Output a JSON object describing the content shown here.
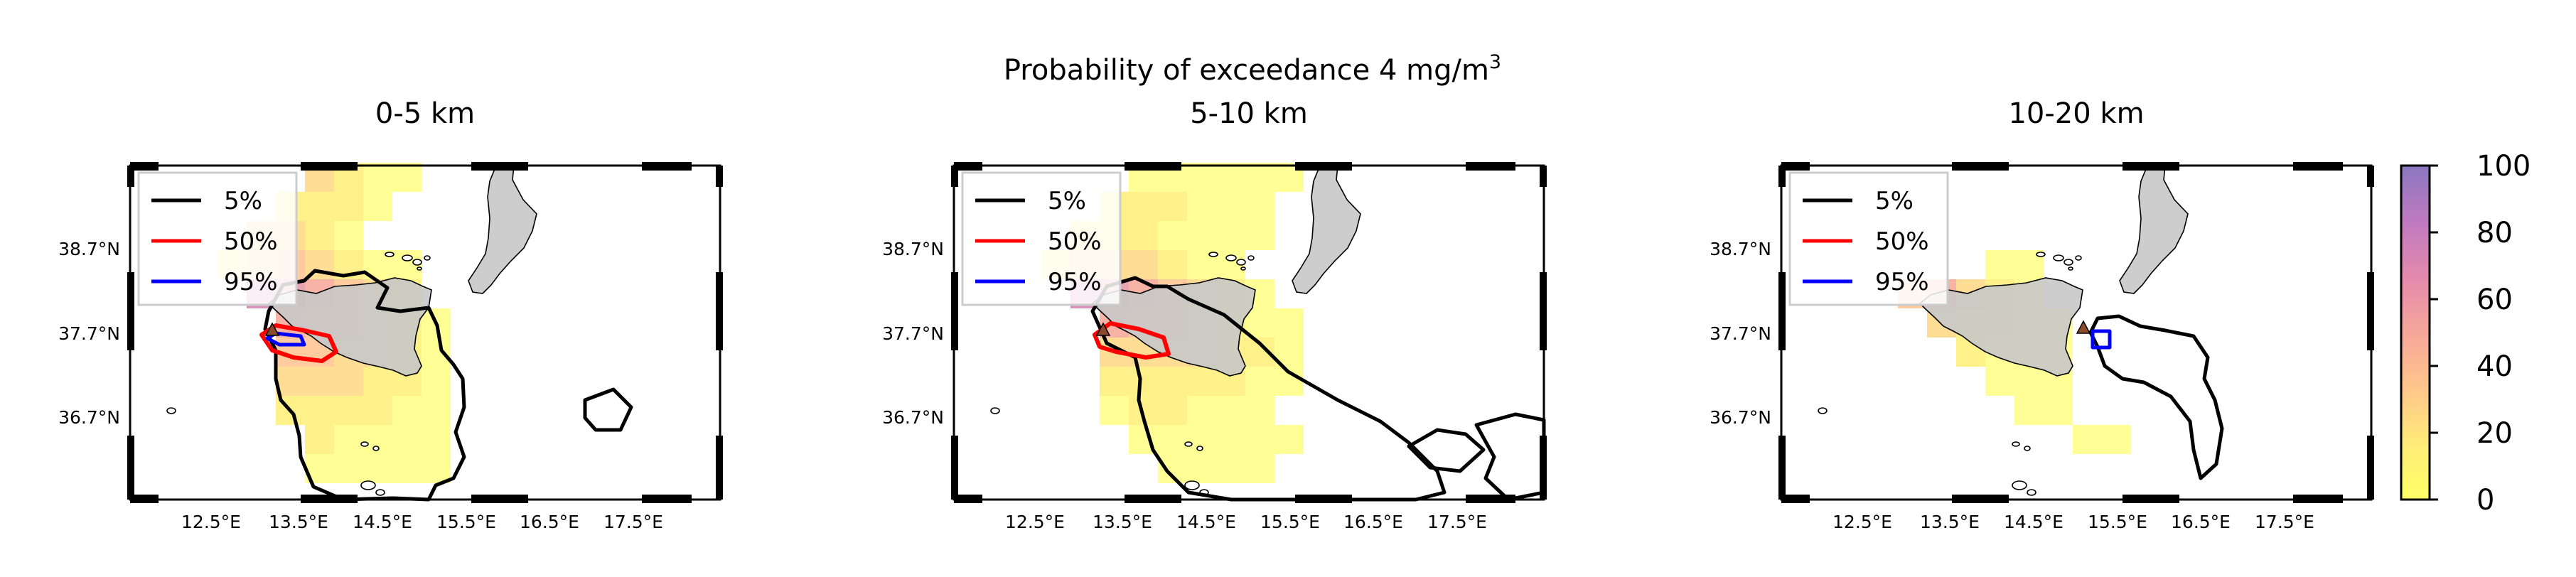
{
  "suptitle": {
    "main": "Probability of exceedance 4 mg/m",
    "superscript": "3"
  },
  "chart_data": [
    {
      "type": "heatmap",
      "title": "0-5 km",
      "x_ticks": [
        "12.5°E",
        "13.5°E",
        "14.5°E",
        "15.5°E",
        "16.5°E",
        "17.5°E"
      ],
      "y_ticks": [
        "38.7°N",
        "37.7°N",
        "36.7°N"
      ],
      "legend": {
        "position": "upper-left",
        "entries": [
          {
            "label": "5%",
            "color": "#000000"
          },
          {
            "label": "50%",
            "color": "#ff0000"
          },
          {
            "label": "95%",
            "color": "#0000ff"
          }
        ]
      }
    },
    {
      "type": "heatmap",
      "title": "5-10 km",
      "x_ticks": [
        "12.5°E",
        "13.5°E",
        "14.5°E",
        "15.5°E",
        "16.5°E",
        "17.5°E"
      ],
      "y_ticks": [
        "38.7°N",
        "37.7°N",
        "36.7°N"
      ],
      "legend": {
        "position": "upper-left",
        "entries": [
          {
            "label": "5%",
            "color": "#000000"
          },
          {
            "label": "50%",
            "color": "#ff0000"
          },
          {
            "label": "95%",
            "color": "#0000ff"
          }
        ]
      }
    },
    {
      "type": "heatmap",
      "title": "10-20 km",
      "x_ticks": [
        "12.5°E",
        "13.5°E",
        "14.5°E",
        "15.5°E",
        "16.5°E",
        "17.5°E"
      ],
      "y_ticks": [
        "38.7°N",
        "37.7°N",
        "36.7°N"
      ],
      "legend": {
        "position": "upper-left",
        "entries": [
          {
            "label": "5%",
            "color": "#000000"
          },
          {
            "label": "50%",
            "color": "#ff0000"
          },
          {
            "label": "95%",
            "color": "#0000ff"
          }
        ]
      }
    }
  ],
  "colorbar": {
    "range": [
      0,
      100
    ],
    "tick_labels": [
      "100",
      "80",
      "60",
      "40",
      "20",
      "0"
    ],
    "colors": [
      "#ffff66",
      "#ffee77",
      "#ffc98a",
      "#f6a69a",
      "#e48aac",
      "#c07ac0",
      "#8a78c0"
    ]
  }
}
